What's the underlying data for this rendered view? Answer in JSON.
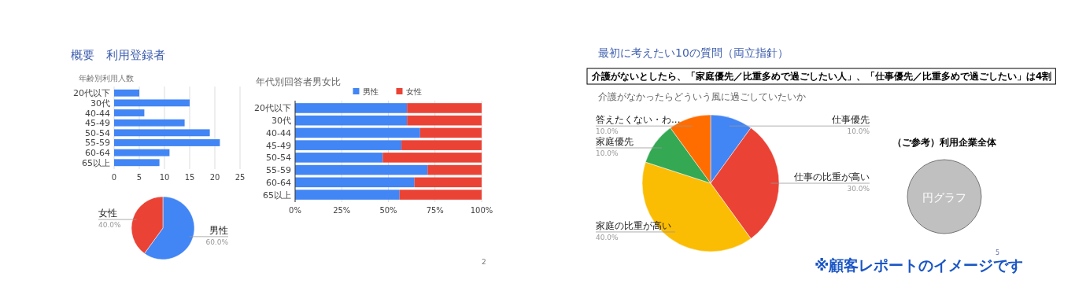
{
  "chart_data": [
    {
      "type": "bar",
      "orientation": "horizontal",
      "title": "年齢別利用人数",
      "categories": [
        "20代以下",
        "30代",
        "40-44",
        "45-49",
        "50-54",
        "55-59",
        "60-64",
        "65以上"
      ],
      "values": [
        5,
        15,
        6,
        14,
        19,
        21,
        11,
        9
      ],
      "color": "#4285f4",
      "xlim": [
        0,
        25
      ],
      "xticks": [
        0,
        5,
        10,
        15,
        20,
        25
      ],
      "grid": "x",
      "annotations": [
        "概要　利用登録者",
        "2"
      ]
    },
    {
      "type": "bar",
      "orientation": "horizontal",
      "stacked": true,
      "title": "年代別回答者男女比",
      "categories": [
        "20代以下",
        "30代",
        "40-44",
        "45-49",
        "50-54",
        "55-59",
        "60-64",
        "65以上"
      ],
      "series": [
        {
          "name": "男性",
          "color": "#4285f4",
          "values": [
            60,
            60,
            67,
            57,
            47,
            71,
            64,
            56
          ]
        },
        {
          "name": "女性",
          "color": "#ea4335",
          "values": [
            40,
            40,
            33,
            43,
            53,
            29,
            36,
            44
          ]
        }
      ],
      "xlim": [
        0,
        100
      ],
      "xticks": [
        {
          "value": 0,
          "label": "0%"
        },
        {
          "value": 25,
          "label": "25%"
        },
        {
          "value": 50,
          "label": "50%"
        },
        {
          "value": 75,
          "label": "75%"
        },
        {
          "value": 100,
          "label": "100%"
        }
      ],
      "grid": "x",
      "legend": "top"
    },
    {
      "type": "pie",
      "categories": [
        "男性",
        "女性"
      ],
      "values": [
        60,
        40
      ],
      "colors": [
        "#4285f4",
        "#ea4335"
      ],
      "value_labels": [
        "60.0%",
        "40.0%"
      ]
    },
    {
      "type": "pie",
      "title": "介護がなかったらどういう風に過ごしていたいか",
      "categories": [
        "仕事優先",
        "仕事の比重が高い",
        "家庭の比重が高い",
        "家庭優先",
        "答えたくない・わ..."
      ],
      "values": [
        10,
        30,
        40,
        10,
        10
      ],
      "colors": [
        "#4285f4",
        "#ea4335",
        "#fbbc04",
        "#34a853",
        "#ff6d01"
      ],
      "value_labels": [
        "10.0%",
        "30.0%",
        "40.0%",
        "10.0%",
        "10.0%"
      ],
      "annotations": [
        "最初に考えたい10の質問（両立指針）",
        "介護がないとしたら、「家庭優先／比重多めで過ごしたい人」、「仕事優先／比重多めで過ごしたい」は4割",
        "5",
        "※顧客レポートのイメージです"
      ]
    },
    {
      "type": "other",
      "title": "（ご参考）利用企業全体",
      "annotations": [
        "円グラフ"
      ]
    }
  ]
}
